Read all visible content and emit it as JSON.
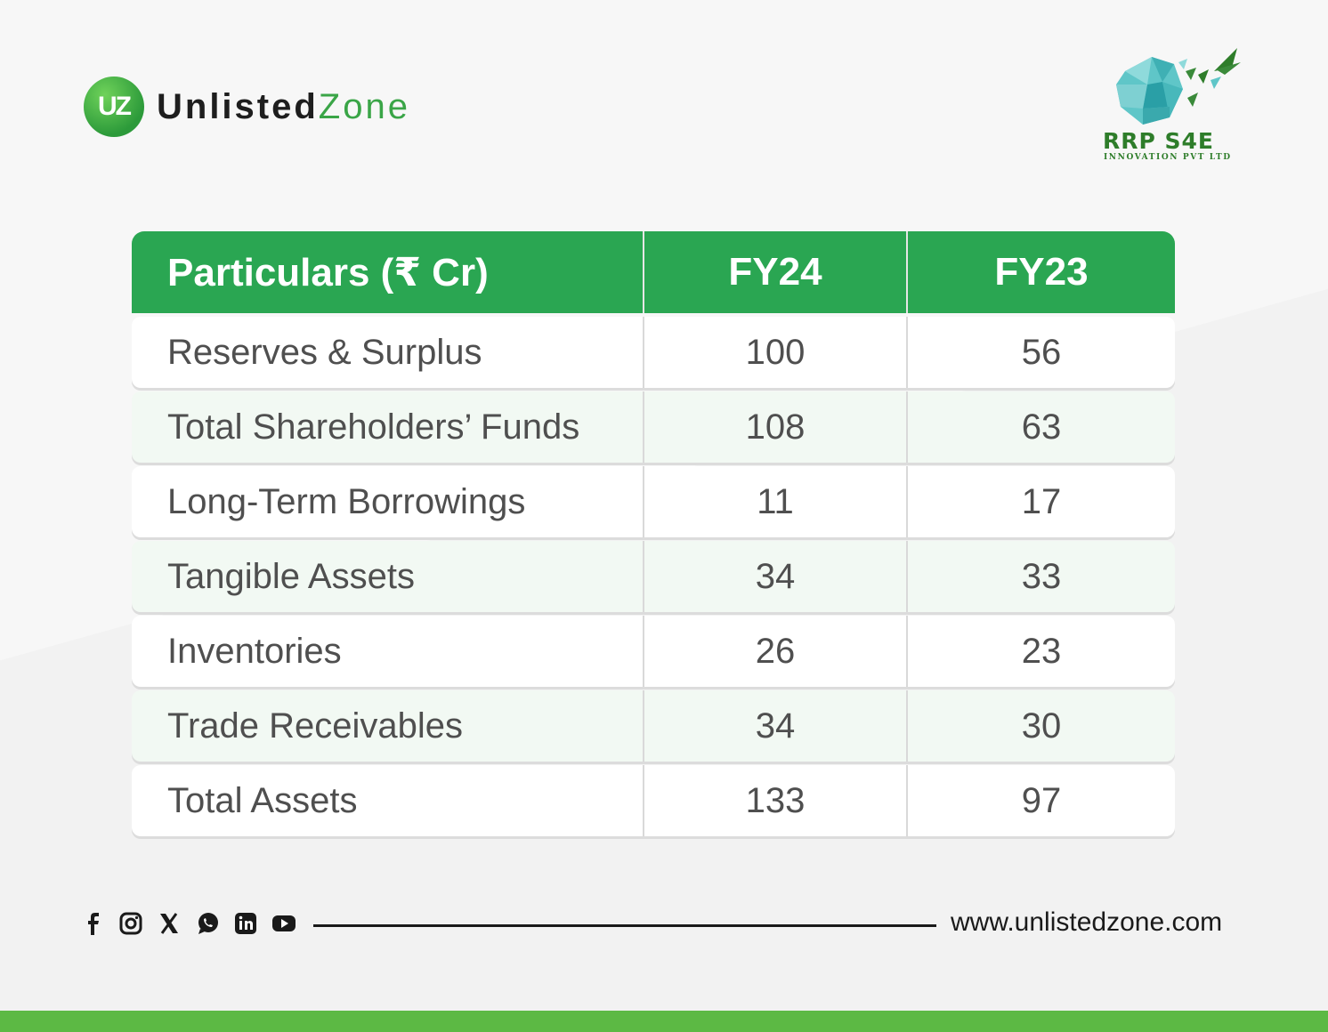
{
  "brand": {
    "uz_badge": "UZ",
    "name_part1": "Unlisted",
    "name_part2": "Zone"
  },
  "partner": {
    "name": "RRP S4E",
    "subtitle": "INNOVATION PVT LTD"
  },
  "table": {
    "headers": [
      "Particulars (₹ Cr)",
      "FY24",
      "FY23"
    ],
    "rows": [
      {
        "label": "Reserves & Surplus",
        "fy24": "100",
        "fy23": "56"
      },
      {
        "label": "Total Shareholders’ Funds",
        "fy24": "108",
        "fy23": "63"
      },
      {
        "label": "Long-Term Borrowings",
        "fy24": "11",
        "fy23": "17"
      },
      {
        "label": "Tangible Assets",
        "fy24": "34",
        "fy23": "33"
      },
      {
        "label": "Inventories",
        "fy24": "26",
        "fy23": "23"
      },
      {
        "label": "Trade Receivables",
        "fy24": "34",
        "fy23": "30"
      },
      {
        "label": "Total Assets",
        "fy24": "133",
        "fy23": "97"
      }
    ]
  },
  "footer": {
    "social_icons": [
      "facebook-icon",
      "instagram-icon",
      "x-icon",
      "whatsapp-icon",
      "linkedin-icon",
      "youtube-icon"
    ],
    "website": "www.unlistedzone.com"
  },
  "colors": {
    "header_green": "#2aa652",
    "accent_green": "#3aa547",
    "bar_green": "#5cb944"
  }
}
